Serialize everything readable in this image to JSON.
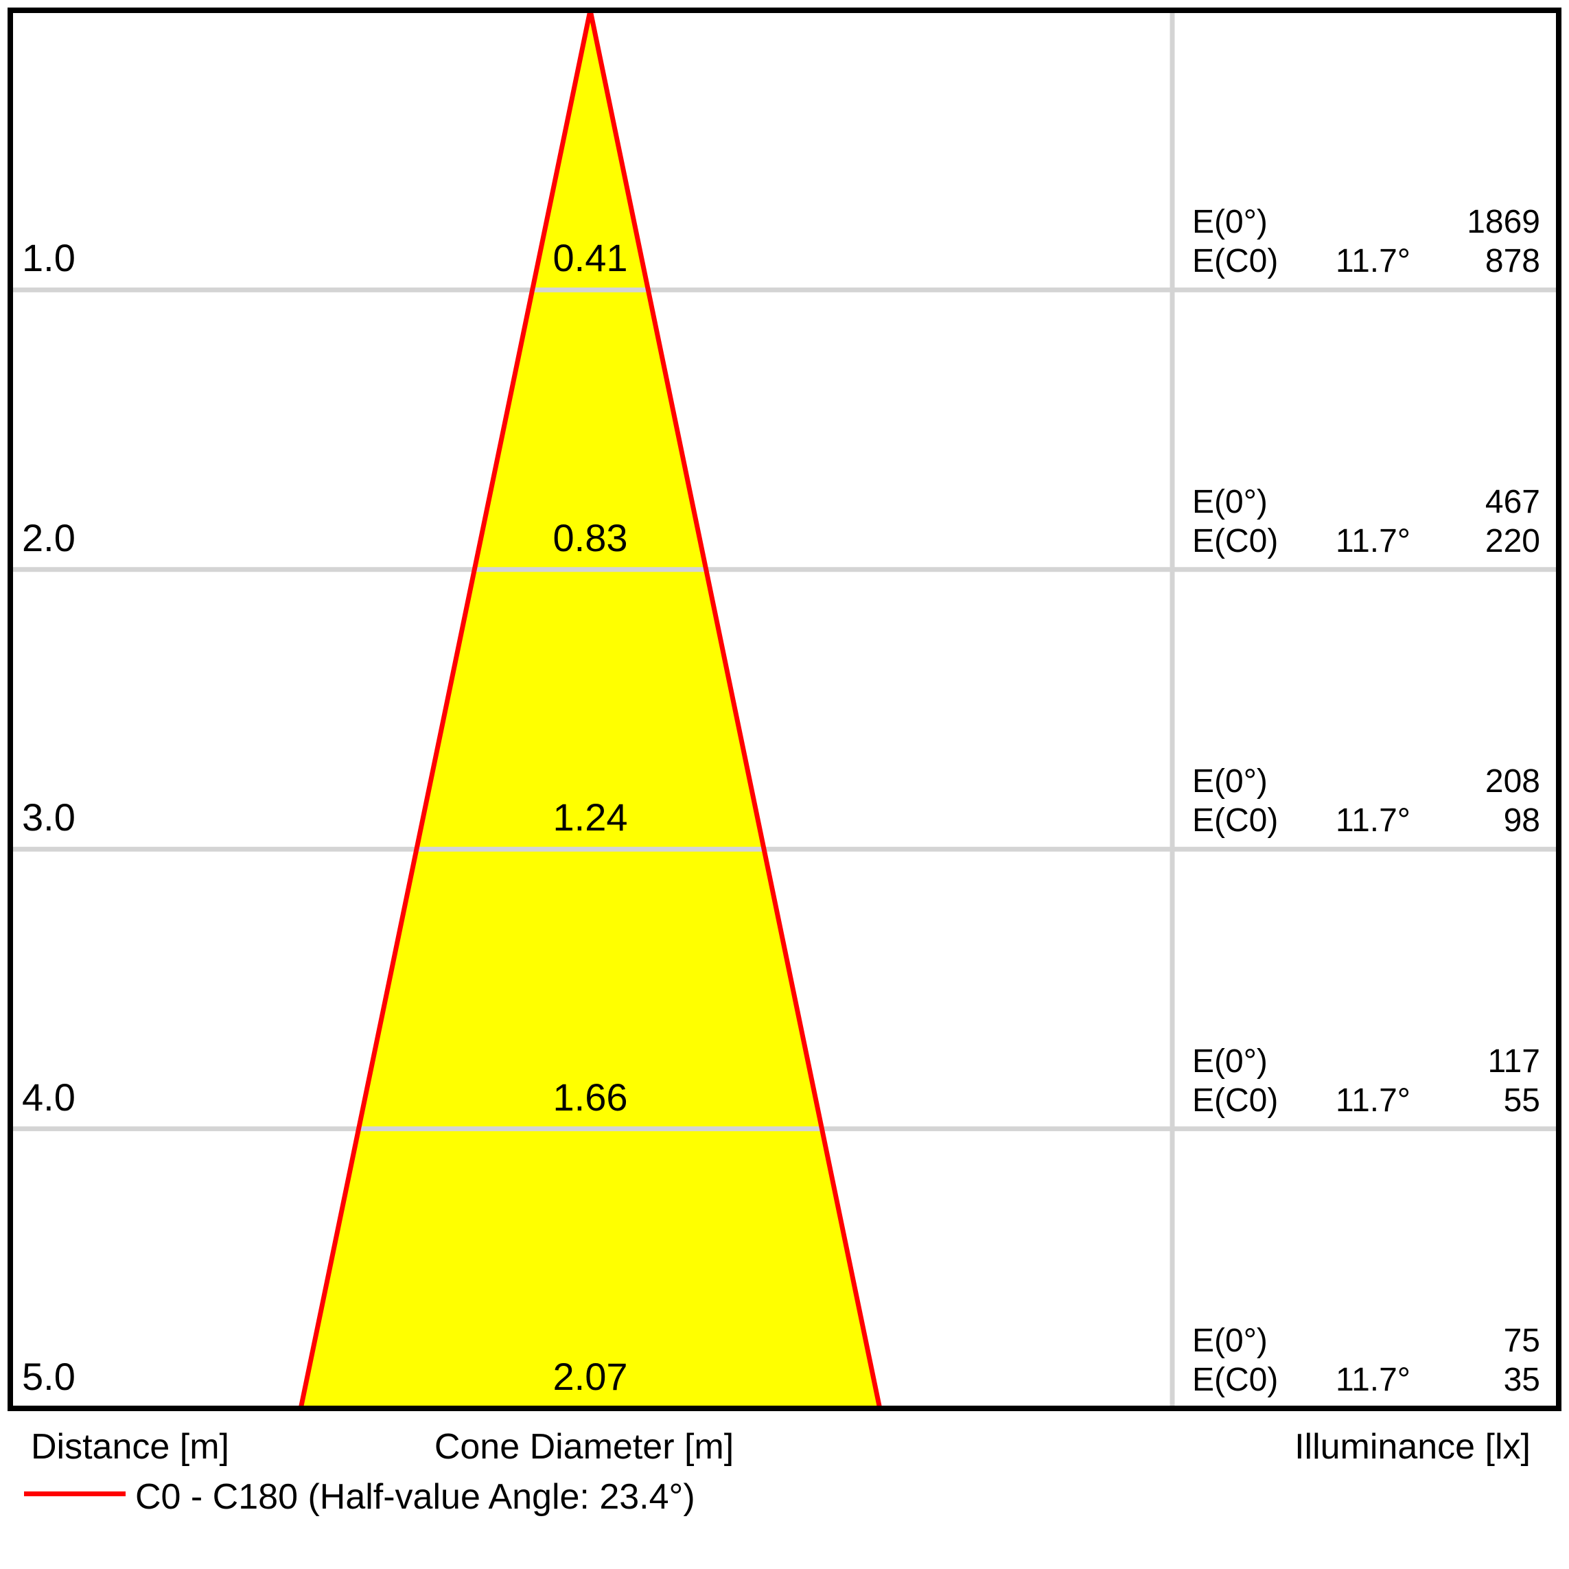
{
  "chart_data": {
    "type": "area",
    "description": "Photometric cone diagram: light beam spread and illuminance by distance",
    "half_value_angle_deg": 23.4,
    "beam_half_angle_deg": 11.7,
    "distance_unit": "m",
    "illuminance_unit": "lx",
    "rows": [
      {
        "distance": "1.0",
        "diameter": "0.41",
        "e0": "1869",
        "ec0": "878"
      },
      {
        "distance": "2.0",
        "diameter": "0.83",
        "e0": "467",
        "ec0": "220"
      },
      {
        "distance": "3.0",
        "diameter": "1.24",
        "e0": "208",
        "ec0": "98"
      },
      {
        "distance": "4.0",
        "diameter": "1.66",
        "e0": "117",
        "ec0": "55"
      },
      {
        "distance": "5.0",
        "diameter": "2.07",
        "e0": "75",
        "ec0": "35"
      }
    ],
    "illuminance_panel": {
      "e0_label": "E(0°)",
      "ec0_label": "E(C0)",
      "angle_label": "11.7°"
    },
    "colors": {
      "cone_fill": "#FFFF00",
      "cone_edge": "#FF0000",
      "gridline": "#D4D4D4",
      "frame": "#000000"
    },
    "legend_position": "bottom-left",
    "grid": true
  },
  "footer": {
    "distance_label": "Distance [m]",
    "cone_diameter_label": "Cone Diameter [m]",
    "illuminance_label": "Illuminance [lx]"
  },
  "legend": {
    "text": "C0 - C180 (Half-value Angle: 23.4°)"
  }
}
